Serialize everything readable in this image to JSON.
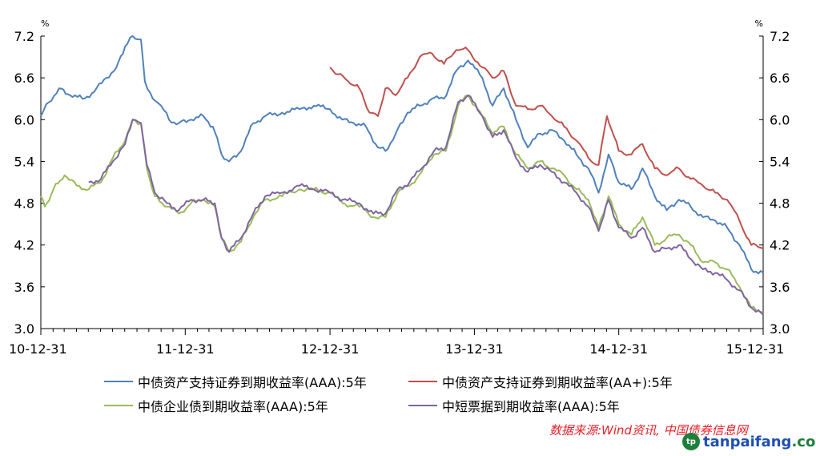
{
  "chart_data": {
    "type": "line",
    "y_unit_left": "%",
    "y_unit_right": "%",
    "ylim": [
      3.0,
      7.2
    ],
    "yticks": [
      "3.0",
      "3.6",
      "4.2",
      "4.8",
      "5.4",
      "6.0",
      "6.6",
      "7.2"
    ],
    "xlim": [
      "2010-12-31",
      "2015-12-31"
    ],
    "xtick_labels": [
      "10-12-31",
      "11-12-31",
      "12-12-31",
      "13-12-31",
      "14-12-31",
      "15-12-31"
    ],
    "grid": false,
    "legend_position": "bottom",
    "series": [
      {
        "name": "中债资产支持证券到期收益率(AAA):5年",
        "color": "#4f81bd",
        "points": [
          [
            "2010-12-31",
            6.05
          ],
          [
            "2011-01-20",
            6.25
          ],
          [
            "2011-02-15",
            6.45
          ],
          [
            "2011-03-15",
            6.35
          ],
          [
            "2011-04-15",
            6.3
          ],
          [
            "2011-05-15",
            6.4
          ],
          [
            "2011-06-15",
            6.6
          ],
          [
            "2011-07-10",
            6.75
          ],
          [
            "2011-08-01",
            7.05
          ],
          [
            "2011-08-20",
            7.2
          ],
          [
            "2011-09-10",
            7.15
          ],
          [
            "2011-09-20",
            6.55
          ],
          [
            "2011-10-10",
            6.3
          ],
          [
            "2011-10-31",
            6.2
          ],
          [
            "2011-11-20",
            6.0
          ],
          [
            "2011-12-15",
            5.95
          ],
          [
            "2012-01-15",
            6.0
          ],
          [
            "2012-02-15",
            6.05
          ],
          [
            "2012-03-10",
            5.9
          ],
          [
            "2012-04-01",
            5.5
          ],
          [
            "2012-04-20",
            5.4
          ],
          [
            "2012-05-20",
            5.55
          ],
          [
            "2012-06-20",
            5.95
          ],
          [
            "2012-07-20",
            6.05
          ],
          [
            "2012-09-01",
            6.1
          ],
          [
            "2012-10-15",
            6.15
          ],
          [
            "2012-11-20",
            6.2
          ],
          [
            "2012-12-31",
            6.15
          ],
          [
            "2013-01-31",
            6.0
          ],
          [
            "2013-03-01",
            5.95
          ],
          [
            "2013-04-01",
            5.9
          ],
          [
            "2013-05-01",
            5.6
          ],
          [
            "2013-05-20",
            5.55
          ],
          [
            "2013-06-15",
            5.8
          ],
          [
            "2013-07-15",
            6.1
          ],
          [
            "2013-08-15",
            6.2
          ],
          [
            "2013-09-15",
            6.3
          ],
          [
            "2013-10-15",
            6.3
          ],
          [
            "2013-11-15",
            6.7
          ],
          [
            "2013-12-15",
            6.85
          ],
          [
            "2014-01-20",
            6.6
          ],
          [
            "2014-02-15",
            6.2
          ],
          [
            "2014-03-15",
            6.45
          ],
          [
            "2014-04-15",
            6.0
          ],
          [
            "2014-05-15",
            5.6
          ],
          [
            "2014-06-15",
            5.8
          ],
          [
            "2014-07-15",
            5.85
          ],
          [
            "2014-08-15",
            5.7
          ],
          [
            "2014-09-15",
            5.5
          ],
          [
            "2014-10-15",
            5.3
          ],
          [
            "2014-11-10",
            4.95
          ],
          [
            "2014-12-05",
            5.5
          ],
          [
            "2014-12-31",
            5.1
          ],
          [
            "2015-02-01",
            5.0
          ],
          [
            "2015-03-01",
            5.3
          ],
          [
            "2015-04-01",
            4.9
          ],
          [
            "2015-05-01",
            4.7
          ],
          [
            "2015-06-01",
            4.85
          ],
          [
            "2015-07-01",
            4.75
          ],
          [
            "2015-08-01",
            4.6
          ],
          [
            "2015-09-01",
            4.55
          ],
          [
            "2015-10-01",
            4.45
          ],
          [
            "2015-11-01",
            4.2
          ],
          [
            "2015-12-01",
            3.85
          ],
          [
            "2015-12-31",
            3.8
          ]
        ]
      },
      {
        "name": "中债资产支持证券到期收益率(AA+):5年",
        "color": "#c0504d",
        "points": [
          [
            "2012-12-31",
            6.75
          ],
          [
            "2013-01-20",
            6.65
          ],
          [
            "2013-02-15",
            6.55
          ],
          [
            "2013-03-15",
            6.45
          ],
          [
            "2013-04-10",
            6.1
          ],
          [
            "2013-05-01",
            6.05
          ],
          [
            "2013-05-20",
            6.45
          ],
          [
            "2013-06-15",
            6.35
          ],
          [
            "2013-07-15",
            6.6
          ],
          [
            "2013-08-15",
            6.9
          ],
          [
            "2013-09-15",
            6.95
          ],
          [
            "2013-10-15",
            6.8
          ],
          [
            "2013-11-15",
            7.0
          ],
          [
            "2013-12-15",
            7.0
          ],
          [
            "2014-01-20",
            6.75
          ],
          [
            "2014-02-15",
            6.6
          ],
          [
            "2014-03-15",
            6.7
          ],
          [
            "2014-04-15",
            6.2
          ],
          [
            "2014-05-15",
            6.15
          ],
          [
            "2014-06-15",
            6.2
          ],
          [
            "2014-07-15",
            6.05
          ],
          [
            "2014-08-15",
            5.9
          ],
          [
            "2014-09-15",
            5.7
          ],
          [
            "2014-10-15",
            5.45
          ],
          [
            "2014-11-10",
            5.35
          ],
          [
            "2014-12-01",
            6.05
          ],
          [
            "2014-12-31",
            5.55
          ],
          [
            "2015-02-01",
            5.5
          ],
          [
            "2015-03-01",
            5.65
          ],
          [
            "2015-04-01",
            5.3
          ],
          [
            "2015-05-01",
            5.2
          ],
          [
            "2015-06-01",
            5.3
          ],
          [
            "2015-07-01",
            5.15
          ],
          [
            "2015-08-01",
            5.05
          ],
          [
            "2015-09-01",
            4.95
          ],
          [
            "2015-10-01",
            4.85
          ],
          [
            "2015-11-01",
            4.55
          ],
          [
            "2015-12-01",
            4.2
          ],
          [
            "2015-12-31",
            4.15
          ]
        ]
      },
      {
        "name": "中债企业债到期收益率(AAA):5年",
        "color": "#9bbb59",
        "points": [
          [
            "2010-12-31",
            4.9
          ],
          [
            "2011-01-10",
            4.75
          ],
          [
            "2011-02-01",
            5.0
          ],
          [
            "2011-03-01",
            5.2
          ],
          [
            "2011-04-01",
            5.05
          ],
          [
            "2011-05-01",
            5.0
          ],
          [
            "2011-06-01",
            5.1
          ],
          [
            "2011-07-01",
            5.45
          ],
          [
            "2011-08-01",
            5.7
          ],
          [
            "2011-08-20",
            6.0
          ],
          [
            "2011-09-10",
            5.95
          ],
          [
            "2011-09-25",
            5.3
          ],
          [
            "2011-10-15",
            4.9
          ],
          [
            "2011-11-15",
            4.75
          ],
          [
            "2011-12-15",
            4.65
          ],
          [
            "2012-01-15",
            4.8
          ],
          [
            "2012-02-15",
            4.85
          ],
          [
            "2012-03-15",
            4.75
          ],
          [
            "2012-04-01",
            4.3
          ],
          [
            "2012-04-20",
            4.1
          ],
          [
            "2012-05-20",
            4.25
          ],
          [
            "2012-06-20",
            4.6
          ],
          [
            "2012-07-20",
            4.85
          ],
          [
            "2012-09-01",
            4.9
          ],
          [
            "2012-10-15",
            5.0
          ],
          [
            "2012-11-20",
            5.0
          ],
          [
            "2012-12-31",
            4.95
          ],
          [
            "2013-02-01",
            4.8
          ],
          [
            "2013-03-15",
            4.75
          ],
          [
            "2013-04-20",
            4.6
          ],
          [
            "2013-05-20",
            4.6
          ],
          [
            "2013-06-20",
            4.95
          ],
          [
            "2013-07-20",
            5.05
          ],
          [
            "2013-08-20",
            5.25
          ],
          [
            "2013-09-20",
            5.5
          ],
          [
            "2013-10-20",
            5.55
          ],
          [
            "2013-11-20",
            6.2
          ],
          [
            "2013-12-15",
            6.35
          ],
          [
            "2014-01-20",
            6.05
          ],
          [
            "2014-02-15",
            5.8
          ],
          [
            "2014-03-15",
            5.9
          ],
          [
            "2014-04-15",
            5.5
          ],
          [
            "2014-05-15",
            5.3
          ],
          [
            "2014-06-15",
            5.4
          ],
          [
            "2014-07-15",
            5.3
          ],
          [
            "2014-08-15",
            5.2
          ],
          [
            "2014-09-15",
            5.0
          ],
          [
            "2014-10-15",
            4.85
          ],
          [
            "2014-11-10",
            4.45
          ],
          [
            "2014-12-05",
            4.9
          ],
          [
            "2014-12-31",
            4.5
          ],
          [
            "2015-02-01",
            4.35
          ],
          [
            "2015-03-01",
            4.6
          ],
          [
            "2015-04-01",
            4.2
          ],
          [
            "2015-05-01",
            4.3
          ],
          [
            "2015-06-01",
            4.35
          ],
          [
            "2015-07-01",
            4.2
          ],
          [
            "2015-08-01",
            3.95
          ],
          [
            "2015-09-01",
            3.95
          ],
          [
            "2015-10-01",
            3.85
          ],
          [
            "2015-11-01",
            3.6
          ],
          [
            "2015-12-01",
            3.3
          ],
          [
            "2015-12-31",
            3.25
          ]
        ]
      },
      {
        "name": "中短票据到期收益率(AAA):5年",
        "color": "#8064a2",
        "points": [
          [
            "2011-05-01",
            5.1
          ],
          [
            "2011-06-01",
            5.15
          ],
          [
            "2011-07-01",
            5.4
          ],
          [
            "2011-08-01",
            5.65
          ],
          [
            "2011-08-20",
            6.0
          ],
          [
            "2011-09-10",
            5.95
          ],
          [
            "2011-09-25",
            5.35
          ],
          [
            "2011-10-15",
            4.95
          ],
          [
            "2011-11-15",
            4.8
          ],
          [
            "2011-12-15",
            4.7
          ],
          [
            "2012-01-15",
            4.85
          ],
          [
            "2012-02-15",
            4.85
          ],
          [
            "2012-03-15",
            4.8
          ],
          [
            "2012-04-01",
            4.3
          ],
          [
            "2012-04-20",
            4.1
          ],
          [
            "2012-05-20",
            4.3
          ],
          [
            "2012-06-20",
            4.65
          ],
          [
            "2012-07-20",
            4.9
          ],
          [
            "2012-09-01",
            4.95
          ],
          [
            "2012-10-15",
            5.05
          ],
          [
            "2012-11-20",
            5.0
          ],
          [
            "2012-12-31",
            4.95
          ],
          [
            "2013-02-01",
            4.85
          ],
          [
            "2013-03-15",
            4.8
          ],
          [
            "2013-04-20",
            4.65
          ],
          [
            "2013-05-20",
            4.65
          ],
          [
            "2013-06-20",
            5.0
          ],
          [
            "2013-07-20",
            5.1
          ],
          [
            "2013-08-20",
            5.3
          ],
          [
            "2013-09-20",
            5.55
          ],
          [
            "2013-10-20",
            5.6
          ],
          [
            "2013-11-20",
            6.25
          ],
          [
            "2013-12-15",
            6.35
          ],
          [
            "2014-01-20",
            6.05
          ],
          [
            "2014-02-15",
            5.75
          ],
          [
            "2014-03-15",
            5.85
          ],
          [
            "2014-04-15",
            5.45
          ],
          [
            "2014-05-15",
            5.25
          ],
          [
            "2014-06-15",
            5.35
          ],
          [
            "2014-07-15",
            5.25
          ],
          [
            "2014-08-15",
            5.1
          ],
          [
            "2014-09-15",
            4.95
          ],
          [
            "2014-10-15",
            4.75
          ],
          [
            "2014-11-10",
            4.4
          ],
          [
            "2014-12-05",
            4.85
          ],
          [
            "2014-12-31",
            4.45
          ],
          [
            "2015-02-01",
            4.3
          ],
          [
            "2015-03-01",
            4.45
          ],
          [
            "2015-04-01",
            4.1
          ],
          [
            "2015-05-01",
            4.15
          ],
          [
            "2015-06-01",
            4.2
          ],
          [
            "2015-07-01",
            4.0
          ],
          [
            "2015-08-01",
            3.85
          ],
          [
            "2015-09-01",
            3.8
          ],
          [
            "2015-10-01",
            3.7
          ],
          [
            "2015-11-01",
            3.55
          ],
          [
            "2015-12-01",
            3.3
          ],
          [
            "2015-12-31",
            3.2
          ]
        ]
      }
    ]
  },
  "source_note": "数据来源:Wind资讯, 中国债券信息网",
  "watermark": {
    "part1": "tanpaifang",
    "part2": ".com"
  }
}
